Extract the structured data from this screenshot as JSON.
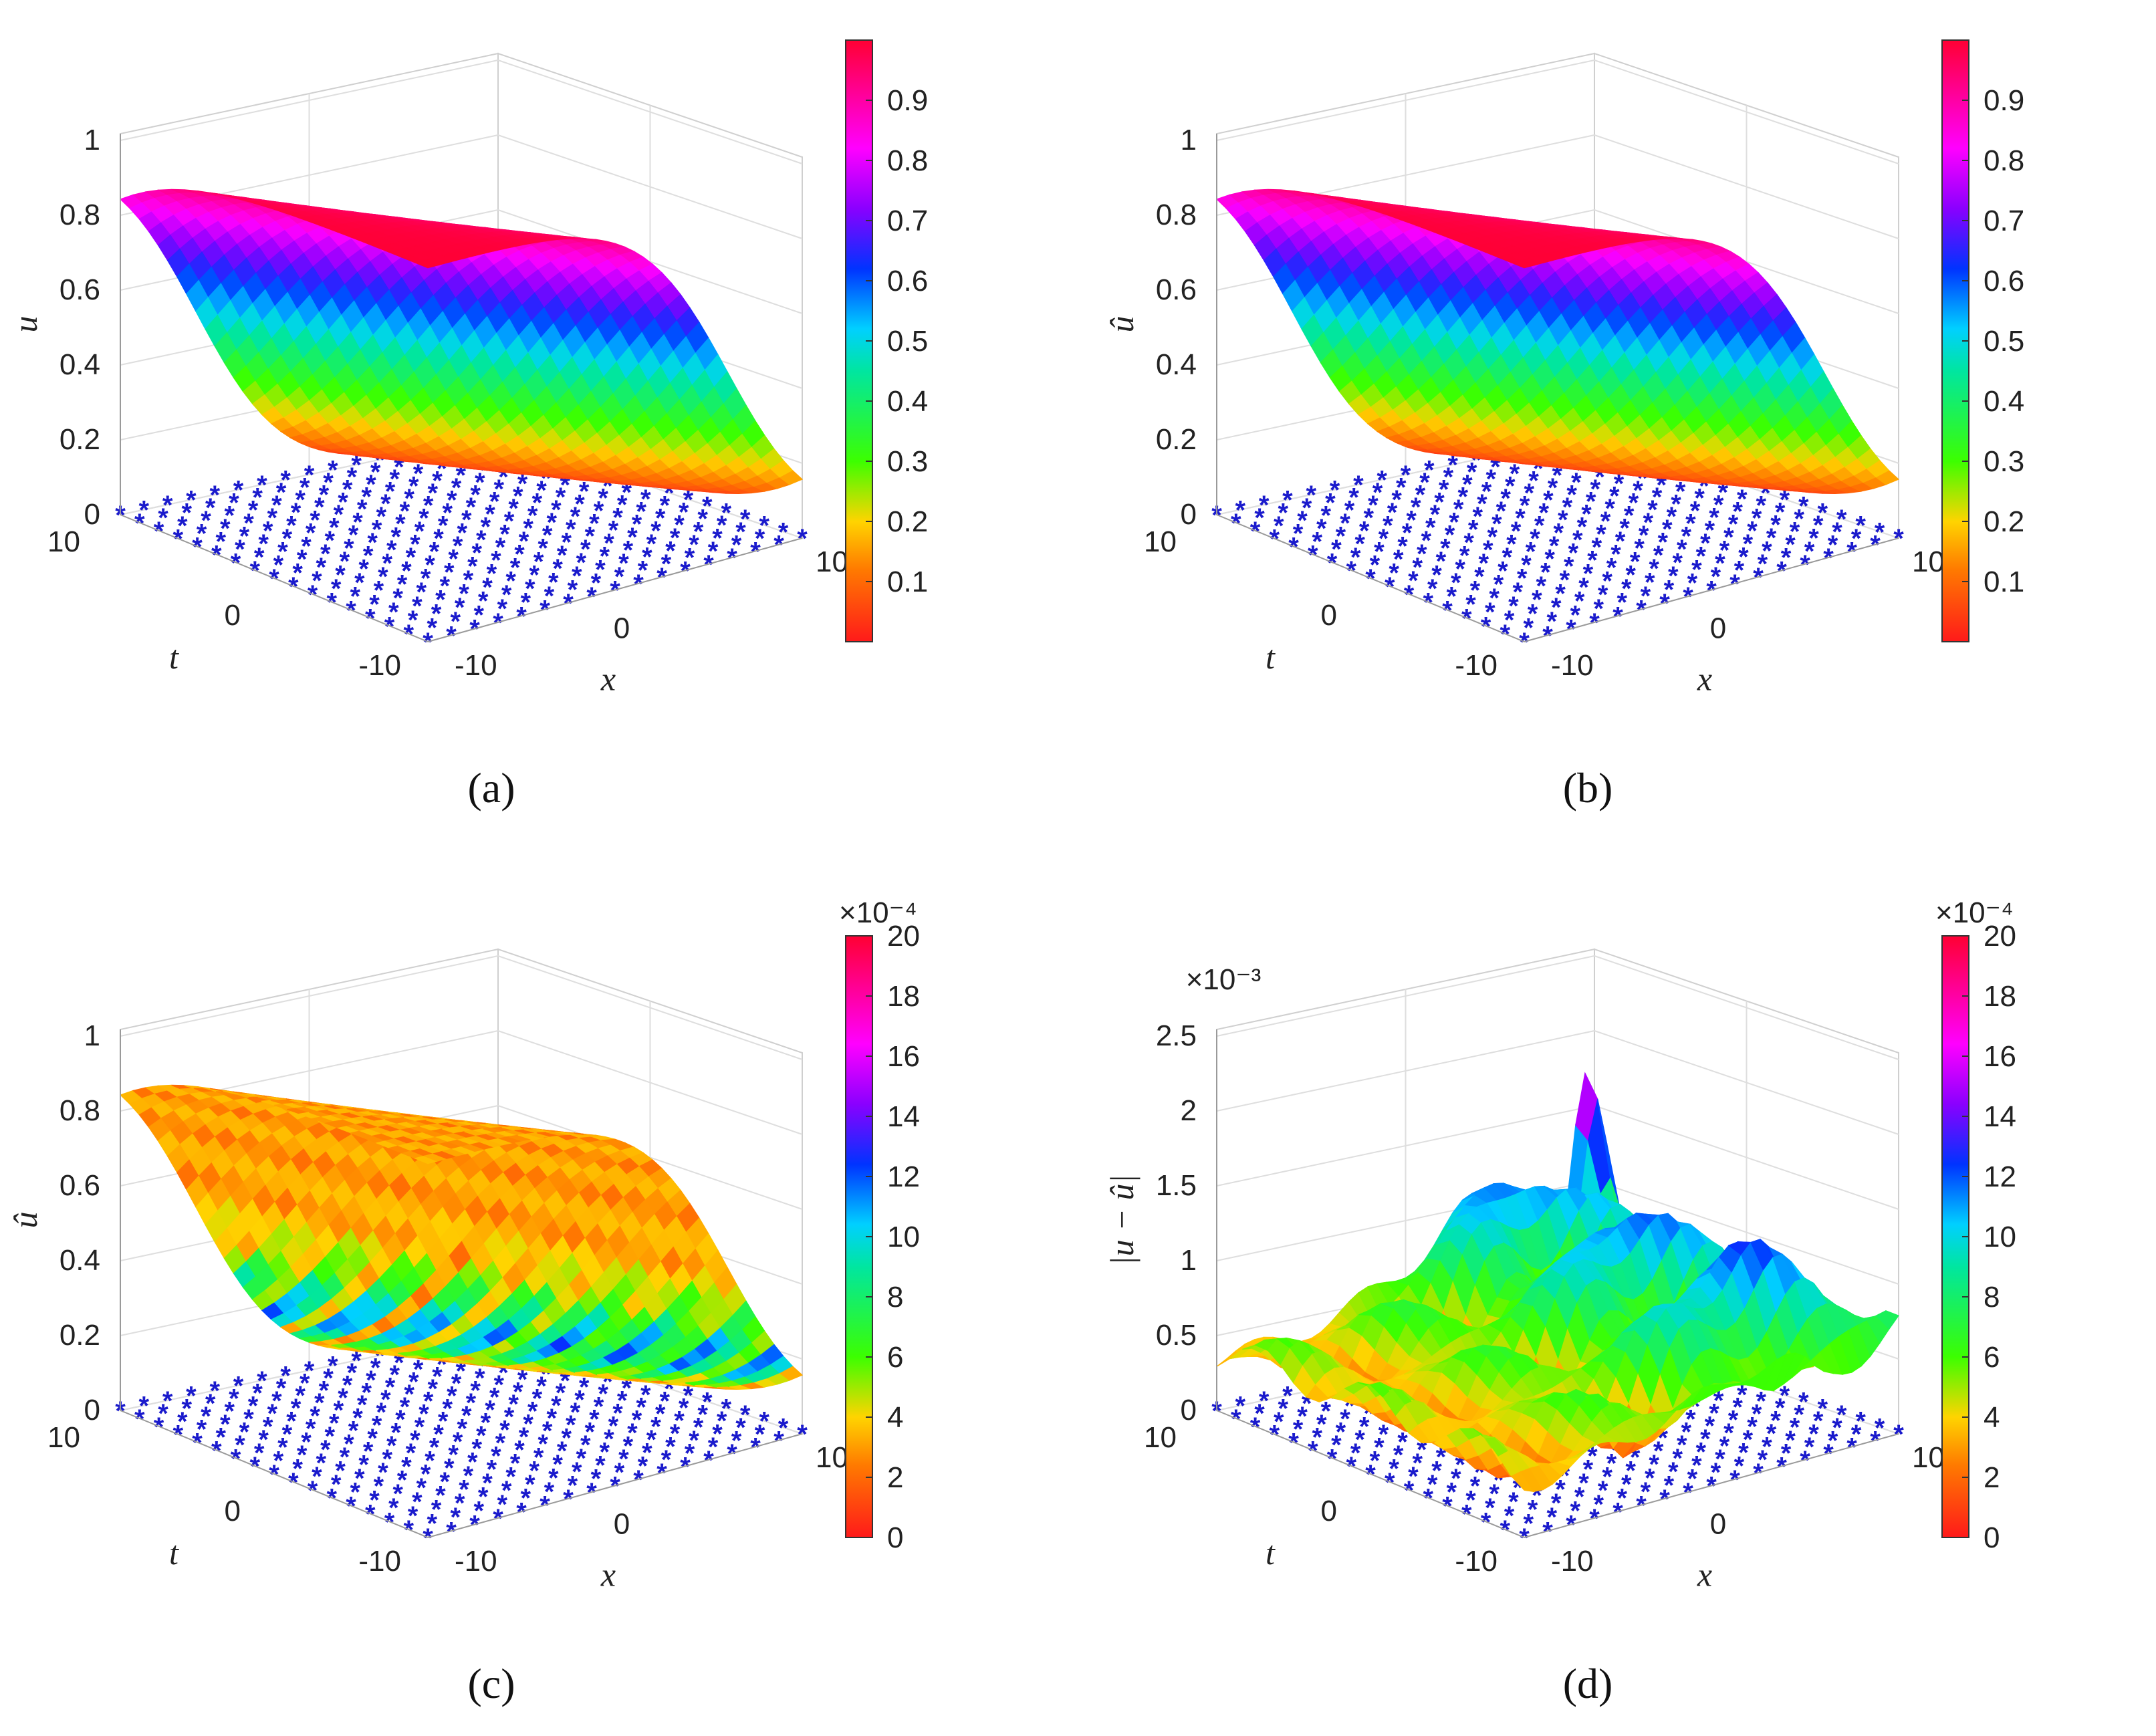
{
  "chart_data": [
    {
      "type": "surface3d",
      "panel": "a",
      "caption": "(a)",
      "zlabel": "u",
      "xlabel": "x",
      "ylabel": "t",
      "x_ticks": [
        "-10",
        "0",
        "10"
      ],
      "t_ticks": [
        "-10",
        "0",
        "10"
      ],
      "z_ticks": [
        "0",
        "0.2",
        "0.4",
        "0.6",
        "0.8",
        "1"
      ],
      "zlim": [
        0,
        1
      ],
      "surface": {
        "function": "kink",
        "x_range": [
          -10,
          10
        ],
        "t_range": [
          -10,
          10
        ],
        "z_min": 0,
        "z_max": 1,
        "error_texture": false
      },
      "colorbar": {
        "ticks": [
          "0.1",
          "0.2",
          "0.3",
          "0.4",
          "0.5",
          "0.6",
          "0.7",
          "0.8",
          "0.9"
        ],
        "min": 0,
        "max": 1,
        "exponent": ""
      },
      "markers": {
        "symbol": "*",
        "color": "#1a1acc",
        "grid": 17
      }
    },
    {
      "type": "surface3d",
      "panel": "b",
      "caption": "(b)",
      "zlabel": "û",
      "xlabel": "x",
      "ylabel": "t",
      "x_ticks": [
        "-10",
        "0",
        "10"
      ],
      "t_ticks": [
        "-10",
        "0",
        "10"
      ],
      "z_ticks": [
        "0",
        "0.2",
        "0.4",
        "0.6",
        "0.8",
        "1"
      ],
      "zlim": [
        0,
        1
      ],
      "surface": {
        "function": "kink",
        "x_range": [
          -10,
          10
        ],
        "t_range": [
          -10,
          10
        ],
        "z_min": 0,
        "z_max": 1,
        "error_texture": false
      },
      "colorbar": {
        "ticks": [
          "0.1",
          "0.2",
          "0.3",
          "0.4",
          "0.5",
          "0.6",
          "0.7",
          "0.8",
          "0.9"
        ],
        "min": 0,
        "max": 1,
        "exponent": ""
      },
      "markers": {
        "symbol": "*",
        "color": "#1a1acc",
        "grid": 17
      }
    },
    {
      "type": "surface3d",
      "panel": "c",
      "caption": "(c)",
      "zlabel": "û",
      "xlabel": "x",
      "ylabel": "t",
      "x_ticks": [
        "-10",
        "0",
        "10"
      ],
      "t_ticks": [
        "-10",
        "0",
        "10"
      ],
      "z_ticks": [
        "0",
        "0.2",
        "0.4",
        "0.6",
        "0.8",
        "1"
      ],
      "zlim": [
        0,
        1
      ],
      "surface": {
        "function": "kink",
        "x_range": [
          -10,
          10
        ],
        "t_range": [
          -10,
          10
        ],
        "z_min": 0,
        "z_max": 1,
        "error_texture": true
      },
      "colorbar": {
        "ticks": [
          "0",
          "2",
          "4",
          "6",
          "8",
          "10",
          "12",
          "14",
          "16",
          "18",
          "20"
        ],
        "min": 0,
        "max": 20,
        "exponent": "×10⁻⁴"
      },
      "markers": {
        "symbol": "*",
        "color": "#1a1acc",
        "grid": 17
      }
    },
    {
      "type": "surface3d",
      "panel": "d",
      "caption": "(d)",
      "zlabel": "|u − û|",
      "xlabel": "x",
      "ylabel": "t",
      "z_exponent": "×10⁻³",
      "x_ticks": [
        "-10",
        "0",
        "10"
      ],
      "t_ticks": [
        "-10",
        "0",
        "10"
      ],
      "z_ticks": [
        "0",
        "0.5",
        "1",
        "1.5",
        "2",
        "2.5"
      ],
      "zlim": [
        0,
        2.5
      ],
      "surface": {
        "function": "error",
        "x_range": [
          -10,
          10
        ],
        "t_range": [
          -10,
          10
        ],
        "z_min": 0,
        "z_max": 2.5,
        "peak": 1.85,
        "error_texture": false
      },
      "colorbar": {
        "ticks": [
          "0",
          "2",
          "4",
          "6",
          "8",
          "10",
          "12",
          "14",
          "16",
          "18",
          "20"
        ],
        "min": 0,
        "max": 20,
        "exponent": "×10⁻⁴"
      },
      "markers": {
        "symbol": "*",
        "color": "#1a1acc",
        "grid": 17
      }
    }
  ]
}
